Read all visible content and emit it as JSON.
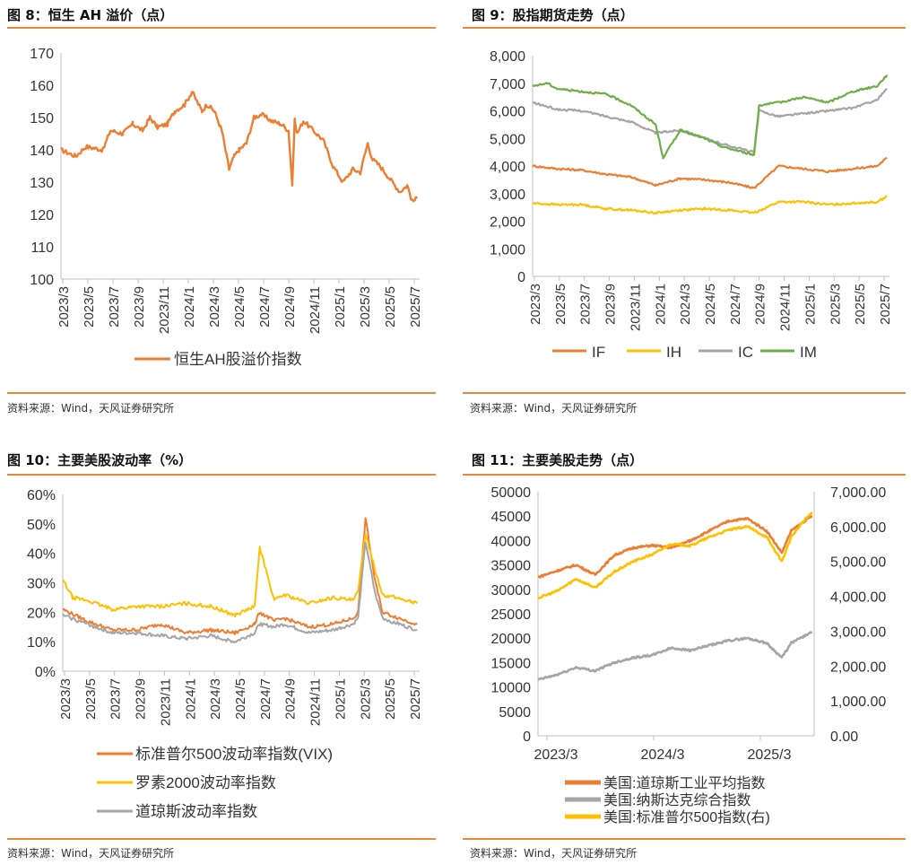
{
  "source_text": "资料来源：Wind，天风证券研究所",
  "colors": {
    "orange": "#ED7D31",
    "yellow": "#FFC000",
    "gray": "#A5A5A5",
    "green": "#70AD47",
    "rule": "#E8883A",
    "axis": "#BFBFBF"
  },
  "panels": [
    {
      "title": "图 8：恒生 AH 溢价（点）"
    },
    {
      "title": "图 9：股指期货走势（点）"
    },
    {
      "title": "图 10：主要美股波动率（%）"
    },
    {
      "title": "图 11：主要美股走势（点）"
    }
  ],
  "chart_data": [
    {
      "type": "line",
      "title": "",
      "x_ticks": [
        "2023/3",
        "2023/5",
        "2023/7",
        "2023/9",
        "2023/11",
        "2024/1",
        "2024/3",
        "2024/5",
        "2024/7",
        "2024/9",
        "2024/11",
        "2025/1",
        "2025/3",
        "2025/5",
        "2025/7"
      ],
      "ylim": [
        100,
        170
      ],
      "y_ticks": [
        "100",
        "110",
        "120",
        "130",
        "140",
        "150",
        "160",
        "170"
      ],
      "legend_position": "bottom",
      "series": [
        {
          "name": "恒生AH股溢价指数",
          "color": "orange",
          "x": [
            0,
            0.6,
            1,
            1.7,
            2,
            2.5,
            2.9,
            3.3,
            3.6,
            3.9,
            4.3,
            4.6,
            5.0,
            5.3,
            5.7,
            5.9,
            6.2,
            6.5,
            6.8,
            7.0,
            7.2,
            7.5,
            7.8,
            8.1,
            8.5,
            8.9,
            9.2,
            9.35,
            9.45,
            9.55,
            9.8,
            10.2,
            10.6,
            11.0,
            11.4,
            11.8,
            12.1,
            12.4,
            12.6,
            12.9,
            13.3,
            13.7,
            14.0,
            14.2,
            14.4
          ],
          "values": [
            140,
            138,
            141,
            140,
            146,
            145,
            148,
            146,
            150,
            147,
            148,
            152,
            154,
            158,
            152,
            154,
            152,
            146,
            134,
            138,
            140,
            142,
            150,
            151,
            149,
            148,
            146,
            129,
            149,
            145,
            149,
            146,
            143,
            135,
            130,
            134,
            133,
            142,
            137,
            135,
            131,
            127,
            129,
            124,
            125
          ]
        }
      ]
    },
    {
      "type": "line",
      "title": "",
      "x_ticks": [
        "2023/3",
        "2023/5",
        "2023/7",
        "2023/9",
        "2023/11",
        "2024/1",
        "2024/3",
        "2024/5",
        "2024/7",
        "2024/9",
        "2024/11",
        "2025/1",
        "2025/3",
        "2025/5",
        "2025/7"
      ],
      "ylim": [
        0,
        8000
      ],
      "y_ticks": [
        "0",
        "1,000",
        "2,000",
        "3,000",
        "4,000",
        "5,000",
        "6,000",
        "7,000",
        "8,000"
      ],
      "legend_position": "bottom",
      "series": [
        {
          "name": "IF",
          "color": "orange",
          "x": [
            0,
            1,
            2,
            3,
            4,
            5,
            6,
            7,
            8,
            9,
            10,
            11,
            12,
            13,
            14,
            14.4
          ],
          "values": [
            4000,
            3900,
            3850,
            3700,
            3600,
            3300,
            3550,
            3500,
            3400,
            3200,
            4000,
            3900,
            3800,
            3900,
            4000,
            4300
          ]
        },
        {
          "name": "IH",
          "color": "yellow",
          "x": [
            0,
            1,
            2,
            3,
            4,
            5,
            6,
            7,
            8,
            9,
            10,
            11,
            12,
            13,
            14,
            14.4
          ],
          "values": [
            2650,
            2600,
            2600,
            2450,
            2400,
            2300,
            2400,
            2450,
            2400,
            2300,
            2700,
            2700,
            2600,
            2650,
            2700,
            2900
          ]
        },
        {
          "name": "IC",
          "color": "gray",
          "x": [
            0,
            1,
            2,
            3,
            4,
            5,
            6,
            7,
            7.7,
            9,
            9.2,
            10,
            11,
            12,
            13,
            14,
            14.4
          ],
          "values": [
            6300,
            6050,
            6000,
            5800,
            5600,
            5200,
            5300,
            5000,
            4800,
            4500,
            6000,
            5800,
            5900,
            6000,
            6100,
            6400,
            6800
          ]
        },
        {
          "name": "IM",
          "color": "green",
          "x": [
            0,
            0.6,
            1,
            2,
            3,
            4,
            5,
            5.3,
            6,
            7,
            7.7,
            9,
            9.2,
            10,
            11,
            12,
            13,
            14,
            14.4
          ],
          "values": [
            6900,
            7000,
            6800,
            6700,
            6600,
            6200,
            5500,
            4300,
            5300,
            5000,
            4700,
            4400,
            6200,
            6300,
            6500,
            6300,
            6700,
            6900,
            7300
          ]
        }
      ]
    },
    {
      "type": "line",
      "title": "",
      "x_ticks": [
        "2023/3",
        "2023/5",
        "2023/7",
        "2023/9",
        "2023/11",
        "2024/1",
        "2024/3",
        "2024/5",
        "2024/7",
        "2024/9",
        "2024/11",
        "2025/1",
        "2025/3",
        "2025/5",
        "2025/7"
      ],
      "ylim": [
        0,
        60
      ],
      "y_ticks": [
        "0%",
        "10%",
        "20%",
        "30%",
        "40%",
        "50%",
        "60%"
      ],
      "legend_position": "bottom",
      "series": [
        {
          "name": "标准普尔500波动率指数(VIX)",
          "color": "orange",
          "x": [
            0,
            1,
            2,
            3,
            4,
            5,
            6,
            7,
            7.8,
            8,
            8.6,
            9,
            10,
            11,
            11.8,
            12,
            12.3,
            12.7,
            13,
            14,
            14.4
          ],
          "values": [
            21,
            17,
            14,
            14,
            16,
            13,
            14,
            13,
            16,
            20,
            17,
            18,
            15,
            16,
            18,
            20,
            52,
            30,
            20,
            17,
            16
          ]
        },
        {
          "name": "罗素2000波动率指数",
          "color": "yellow",
          "x": [
            0,
            0.4,
            1,
            2,
            3,
            4,
            5,
            6,
            7,
            7.8,
            8,
            8.6,
            9,
            10,
            11,
            11.8,
            12,
            12.3,
            12.7,
            13,
            14,
            14.4
          ],
          "values": [
            31,
            25,
            24,
            21,
            22,
            22,
            23,
            22,
            19,
            22,
            42,
            24,
            26,
            23,
            25,
            24,
            27,
            47,
            34,
            26,
            24,
            23
          ]
        },
        {
          "name": "道琼斯波动率指数",
          "color": "gray",
          "x": [
            0,
            1,
            2,
            3,
            4,
            5,
            6,
            7,
            7.8,
            8,
            8.6,
            9,
            10,
            11,
            11.8,
            12,
            12.3,
            12.7,
            13,
            14,
            14.4
          ],
          "values": [
            19,
            16,
            13,
            13,
            12,
            11,
            12,
            10,
            13,
            16,
            15,
            16,
            13,
            14,
            16,
            18,
            44,
            26,
            18,
            15,
            14
          ]
        }
      ]
    },
    {
      "type": "line",
      "title": "",
      "x_ticks": [
        "2023/3",
        "2024/3",
        "2025/3"
      ],
      "ylim": [
        0,
        50000
      ],
      "y_ticks": [
        "0",
        "5000",
        "10000",
        "15000",
        "20000",
        "25000",
        "30000",
        "35000",
        "40000",
        "45000",
        "50000"
      ],
      "y2lim": [
        0,
        7000
      ],
      "y2_ticks": [
        "0.00",
        "1,000.00",
        "2,000.00",
        "3,000.00",
        "4,000.00",
        "5,000.00",
        "6,000.00",
        "7,000.00"
      ],
      "legend_position": "bottom",
      "series": [
        {
          "name": "美国:道琼斯工业平均指数",
          "color": "orange",
          "axis": "left",
          "x": [
            0,
            1,
            2,
            3,
            4,
            5,
            6,
            7,
            8,
            9,
            10,
            11,
            12,
            12.8,
            13.3,
            14,
            14.4
          ],
          "values": [
            32500,
            33800,
            35000,
            33000,
            37000,
            38500,
            39000,
            38500,
            40000,
            42000,
            44000,
            44500,
            42000,
            37500,
            42000,
            44000,
            45000
          ]
        },
        {
          "name": "美国:纳斯达克综合指数",
          "color": "gray",
          "axis": "left",
          "x": [
            0,
            1,
            2,
            3,
            4,
            5,
            6,
            7,
            8,
            9,
            10,
            11,
            12,
            12.8,
            13.3,
            14,
            14.4
          ],
          "values": [
            11500,
            12500,
            14000,
            13300,
            15000,
            16000,
            16500,
            18000,
            17500,
            18500,
            19500,
            20000,
            19000,
            16000,
            19000,
            20500,
            21200
          ]
        },
        {
          "name": "美国:标准普尔500指数(右)",
          "color": "yellow",
          "axis": "right",
          "x": [
            0,
            1,
            2,
            3,
            4,
            5,
            6,
            7,
            8,
            9,
            10,
            11,
            12,
            12.8,
            13.3,
            14,
            14.4
          ],
          "values": [
            3950,
            4150,
            4500,
            4250,
            4700,
            5000,
            5200,
            5500,
            5450,
            5700,
            5900,
            6000,
            5700,
            5000,
            5700,
            6200,
            6400
          ]
        }
      ]
    }
  ]
}
